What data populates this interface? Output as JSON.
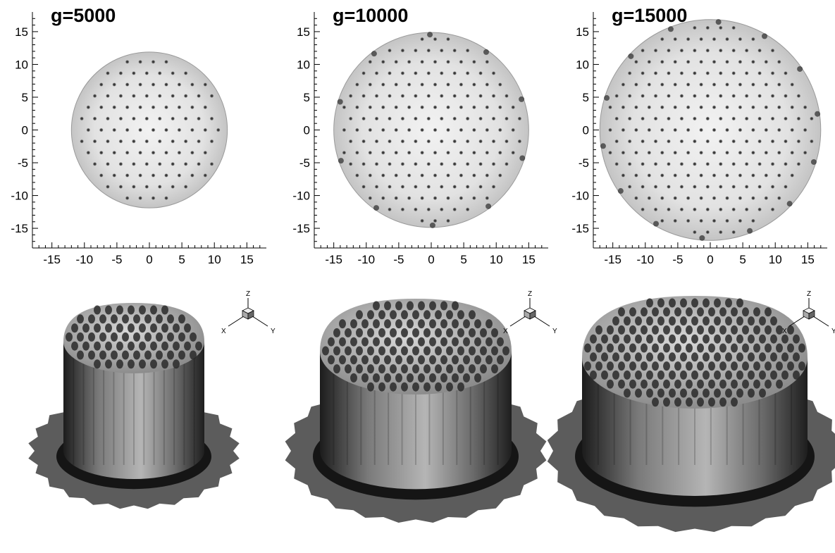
{
  "panels": [
    {
      "title": "g=5000",
      "domain_radius": 12
    },
    {
      "title": "g=10000",
      "domain_radius": 15
    },
    {
      "title": "g=15000",
      "domain_radius": 17
    }
  ],
  "axes": {
    "x_ticks": [
      "-15",
      "-10",
      "-5",
      "0",
      "5",
      "10",
      "15"
    ],
    "y_ticks": [
      "15",
      "10",
      "5",
      "0",
      "-5",
      "-10",
      "-15"
    ],
    "range": [
      -18,
      18
    ]
  },
  "triad": {
    "z_label": "Z",
    "x_label": "X",
    "y_label": "Y"
  },
  "colors": {
    "background": "#ffffff",
    "domain_fill": "#e6e6e6",
    "defect": "#3a3a3a",
    "surface_dark": "#1a1a1a",
    "base_plate": "#5a5a5a"
  }
}
